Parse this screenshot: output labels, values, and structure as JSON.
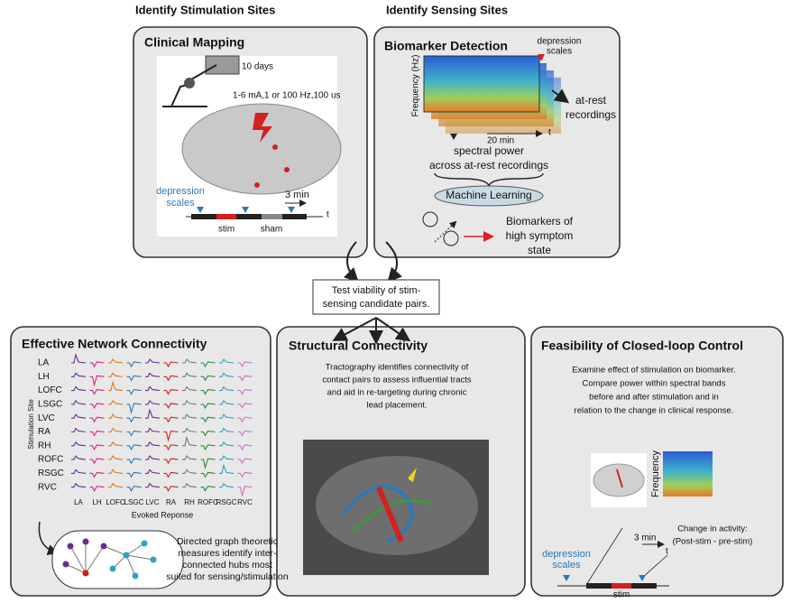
{
  "headers": {
    "stimulation": "Identify Stimulation Sites",
    "sensing": "Identify Sensing Sites"
  },
  "clinical_mapping": {
    "title": "Clinical Mapping",
    "duration": "10 days",
    "parameters": "1-6 mA,1 or 100 Hz,100 us",
    "scales_label": [
      "depression",
      "scales"
    ],
    "time_scale": "3 min",
    "time_axis": "t",
    "stim_label": "stim",
    "sham_label": "sham"
  },
  "biomarker_detection": {
    "title": "Biomarker Detection",
    "scales_label": [
      "depression",
      "scales"
    ],
    "y_axis": "Frequency (Hz)",
    "recordings_label": [
      "at-rest",
      "recordings"
    ],
    "time_scale": "20 min",
    "time_axis": "t",
    "spectral_label": [
      "spectral power",
      "across at-rest recordings"
    ],
    "method": "Machine Learning",
    "result": [
      "Biomarkers of",
      "high symptom",
      "state"
    ]
  },
  "center": {
    "text": [
      "Test viability of stim-",
      "sensing candidate pairs."
    ]
  },
  "effective_connectivity": {
    "title": "Effective Network Connectivity",
    "rows": [
      "LA",
      "LH",
      "LOFC",
      "LSGC",
      "LVC",
      "RA",
      "RH",
      "ROFC",
      "RSGC",
      "RVC"
    ],
    "y_axis": "Stimulation Site",
    "columns": [
      "LA",
      "LH",
      "LOFC",
      "LSGC",
      "LVC",
      "RA",
      "RH",
      "ROFC",
      "RSGC",
      "RVC"
    ],
    "x_axis": "Evoked Reponse",
    "caption": [
      "Directed graph theoretic",
      "measures identify inter-",
      "connected hubs most",
      "suited for sensing/stimulation"
    ]
  },
  "structural_connectivity": {
    "title": "Structural Connectivity",
    "caption": [
      "Tractography identifies connectivity of",
      "contact pairs to assess influential tracts",
      "and aid in re-targeting during chronic",
      "lead placement."
    ]
  },
  "closed_loop": {
    "title": "Feasibility of Closed-loop Control",
    "caption": [
      "Examine effect of stimulation on biomarker.",
      "Compare power within spectral bands",
      "before and after stimulation and in",
      "relation to the change in clinical response."
    ],
    "y_axis": "Frequency",
    "change_label": [
      "Change in activity:",
      "(Post-stim - pre-stim)"
    ],
    "time_scale": "3 min",
    "time_axis": "t",
    "scales_label": [
      "depression",
      "scales"
    ],
    "stim_label": "stim"
  }
}
